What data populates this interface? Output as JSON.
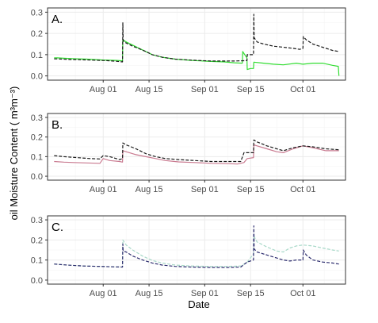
{
  "chart_data": {
    "type": "line",
    "xlabel": "Date",
    "ylabel": "oil Moisture Content ( m³m⁻³)",
    "x_ticks": [
      "Aug 01",
      "Aug 15",
      "Sep 01",
      "Sep 15",
      "Oct 01"
    ],
    "x_tick_days": [
      15,
      29,
      46,
      60,
      76
    ],
    "xlim_days": [
      -2,
      89
    ],
    "x_day0": "Jul 17",
    "ylim": [
      -0.02,
      0.32
    ],
    "y_ticks": [
      0.0,
      0.1,
      0.2,
      0.3
    ],
    "grid": true,
    "colors": {
      "background": "#ffffff",
      "grid_major": "#ebebeb",
      "grid_minor": "#f5f5f5",
      "frame": "#333333"
    },
    "panels": [
      {
        "label": "A.",
        "series": [
          {
            "color": "#33dd33",
            "dash": "solid",
            "points": [
              [
                0,
                0.085
              ],
              [
                1,
                0.085
              ],
              [
                3,
                0.083
              ],
              [
                6,
                0.081
              ],
              [
                10,
                0.079
              ],
              [
                15,
                0.075
              ],
              [
                19,
                0.073
              ],
              [
                20.9,
                0.071
              ],
              [
                21,
                0.17
              ],
              [
                22,
                0.16
              ],
              [
                24,
                0.145
              ],
              [
                26,
                0.13
              ],
              [
                28,
                0.115
              ],
              [
                30,
                0.1
              ],
              [
                33,
                0.088
              ],
              [
                37,
                0.079
              ],
              [
                42,
                0.073
              ],
              [
                48,
                0.068
              ],
              [
                52,
                0.066
              ],
              [
                55,
                0.062
              ],
              [
                57.5,
                0.06
              ],
              [
                57.6,
                0.115
              ],
              [
                58,
                0.105
              ],
              [
                58.9,
                0.085
              ],
              [
                59,
                0.03
              ],
              [
                60,
                0.035
              ],
              [
                60.9,
                0.035
              ],
              [
                61,
                0.065
              ],
              [
                64,
                0.06
              ],
              [
                67,
                0.055
              ],
              [
                70,
                0.052
              ],
              [
                74,
                0.06
              ],
              [
                76,
                0.055
              ],
              [
                79,
                0.06
              ],
              [
                82,
                0.06
              ],
              [
                85,
                0.05
              ],
              [
                86.8,
                0.045
              ],
              [
                87,
                0.0
              ]
            ]
          },
          {
            "color": "#1a1a1a",
            "dash": "dashed",
            "points": [
              [
                0,
                0.08
              ],
              [
                1,
                0.08
              ],
              [
                4,
                0.078
              ],
              [
                8,
                0.076
              ],
              [
                12,
                0.074
              ],
              [
                16,
                0.072
              ],
              [
                19,
                0.069
              ],
              [
                20.9,
                0.066
              ],
              [
                21,
                0.25
              ],
              [
                21.1,
                0.165
              ],
              [
                22,
                0.155
              ],
              [
                24,
                0.14
              ],
              [
                26,
                0.128
              ],
              [
                28,
                0.115
              ],
              [
                30,
                0.1
              ],
              [
                33,
                0.088
              ],
              [
                37,
                0.079
              ],
              [
                42,
                0.074
              ],
              [
                48,
                0.07
              ],
              [
                52,
                0.07
              ],
              [
                55,
                0.07
              ],
              [
                57,
                0.071
              ],
              [
                58.9,
                0.072
              ],
              [
                59,
                0.1
              ],
              [
                60,
                0.1
              ],
              [
                60.9,
                0.1
              ],
              [
                61,
                0.29
              ],
              [
                61.1,
                0.18
              ],
              [
                62,
                0.16
              ],
              [
                64,
                0.15
              ],
              [
                67,
                0.14
              ],
              [
                70,
                0.135
              ],
              [
                73,
                0.13
              ],
              [
                75,
                0.125
              ],
              [
                76,
                0.13
              ],
              [
                76.1,
                0.185
              ],
              [
                77,
                0.17
              ],
              [
                79,
                0.15
              ],
              [
                82,
                0.135
              ],
              [
                85,
                0.12
              ],
              [
                87,
                0.115
              ]
            ]
          }
        ]
      },
      {
        "label": "B.",
        "series": [
          {
            "color": "#c97a90",
            "dash": "solid",
            "points": [
              [
                0,
                0.075
              ],
              [
                3,
                0.072
              ],
              [
                6,
                0.07
              ],
              [
                10,
                0.068
              ],
              [
                14,
                0.066
              ],
              [
                15,
                0.09
              ],
              [
                17,
                0.08
              ],
              [
                20,
                0.075
              ],
              [
                20.9,
                0.072
              ],
              [
                21,
                0.13
              ],
              [
                22,
                0.125
              ],
              [
                25,
                0.11
              ],
              [
                28,
                0.1
              ],
              [
                31,
                0.09
              ],
              [
                34,
                0.08
              ],
              [
                38,
                0.073
              ],
              [
                43,
                0.07
              ],
              [
                48,
                0.066
              ],
              [
                53,
                0.064
              ],
              [
                56,
                0.062
              ],
              [
                58,
                0.07
              ],
              [
                59,
                0.09
              ],
              [
                60.9,
                0.095
              ],
              [
                61,
                0.16
              ],
              [
                62,
                0.155
              ],
              [
                65,
                0.14
              ],
              [
                68,
                0.125
              ],
              [
                70,
                0.12
              ],
              [
                73,
                0.14
              ],
              [
                76,
                0.155
              ],
              [
                79,
                0.145
              ],
              [
                83,
                0.13
              ],
              [
                87,
                0.13
              ]
            ]
          },
          {
            "color": "#1a1a1a",
            "dash": "dashed",
            "points": [
              [
                0,
                0.105
              ],
              [
                3,
                0.1
              ],
              [
                7,
                0.095
              ],
              [
                11,
                0.09
              ],
              [
                14,
                0.088
              ],
              [
                15,
                0.105
              ],
              [
                17,
                0.1
              ],
              [
                20,
                0.085
              ],
              [
                20.9,
                0.09
              ],
              [
                21,
                0.17
              ],
              [
                22,
                0.16
              ],
              [
                25,
                0.14
              ],
              [
                28,
                0.115
              ],
              [
                31,
                0.1
              ],
              [
                34,
                0.09
              ],
              [
                38,
                0.085
              ],
              [
                43,
                0.08
              ],
              [
                48,
                0.075
              ],
              [
                53,
                0.075
              ],
              [
                57,
                0.075
              ],
              [
                58,
                0.12
              ],
              [
                60,
                0.12
              ],
              [
                60.9,
                0.12
              ],
              [
                61,
                0.185
              ],
              [
                62,
                0.175
              ],
              [
                65,
                0.155
              ],
              [
                68,
                0.14
              ],
              [
                70,
                0.13
              ],
              [
                73,
                0.145
              ],
              [
                76,
                0.155
              ],
              [
                79,
                0.15
              ],
              [
                83,
                0.14
              ],
              [
                87,
                0.135
              ]
            ]
          }
        ]
      },
      {
        "label": "C.",
        "series": [
          {
            "color": "#a8d8c8",
            "dash": "dashed",
            "points": [
              [
                0,
                0.08
              ],
              [
                4,
                0.075
              ],
              [
                9,
                0.07
              ],
              [
                14,
                0.068
              ],
              [
                18,
                0.066
              ],
              [
                20.9,
                0.065
              ],
              [
                21,
                0.2
              ],
              [
                22,
                0.175
              ],
              [
                24,
                0.15
              ],
              [
                27,
                0.12
              ],
              [
                30,
                0.098
              ],
              [
                33,
                0.085
              ],
              [
                37,
                0.075
              ],
              [
                42,
                0.07
              ],
              [
                48,
                0.068
              ],
              [
                53,
                0.068
              ],
              [
                57,
                0.07
              ],
              [
                59,
                0.09
              ],
              [
                60.9,
                0.13
              ],
              [
                61,
                0.22
              ],
              [
                62,
                0.19
              ],
              [
                65,
                0.165
              ],
              [
                68,
                0.145
              ],
              [
                70,
                0.14
              ],
              [
                72,
                0.16
              ],
              [
                74,
                0.17
              ],
              [
                76,
                0.175
              ],
              [
                79,
                0.17
              ],
              [
                82,
                0.16
              ],
              [
                85,
                0.15
              ],
              [
                87,
                0.145
              ]
            ]
          },
          {
            "color": "#2c2c6e",
            "dash": "dashed",
            "points": [
              [
                0,
                0.08
              ],
              [
                4,
                0.075
              ],
              [
                9,
                0.07
              ],
              [
                14,
                0.068
              ],
              [
                18,
                0.066
              ],
              [
                20.9,
                0.065
              ],
              [
                21,
                0.18
              ],
              [
                21.1,
                0.145
              ],
              [
                22,
                0.14
              ],
              [
                24,
                0.12
              ],
              [
                27,
                0.1
              ],
              [
                30,
                0.085
              ],
              [
                33,
                0.075
              ],
              [
                37,
                0.068
              ],
              [
                42,
                0.065
              ],
              [
                48,
                0.063
              ],
              [
                53,
                0.063
              ],
              [
                57,
                0.065
              ],
              [
                59,
                0.09
              ],
              [
                60.9,
                0.1
              ],
              [
                61,
                0.27
              ],
              [
                61.1,
                0.155
              ],
              [
                62,
                0.14
              ],
              [
                65,
                0.125
              ],
              [
                68,
                0.11
              ],
              [
                70,
                0.1
              ],
              [
                72,
                0.095
              ],
              [
                74,
                0.1
              ],
              [
                76,
                0.1
              ],
              [
                76.1,
                0.15
              ],
              [
                77,
                0.125
              ],
              [
                79,
                0.1
              ],
              [
                82,
                0.09
              ],
              [
                85,
                0.085
              ],
              [
                87,
                0.08
              ]
            ]
          }
        ]
      }
    ]
  }
}
